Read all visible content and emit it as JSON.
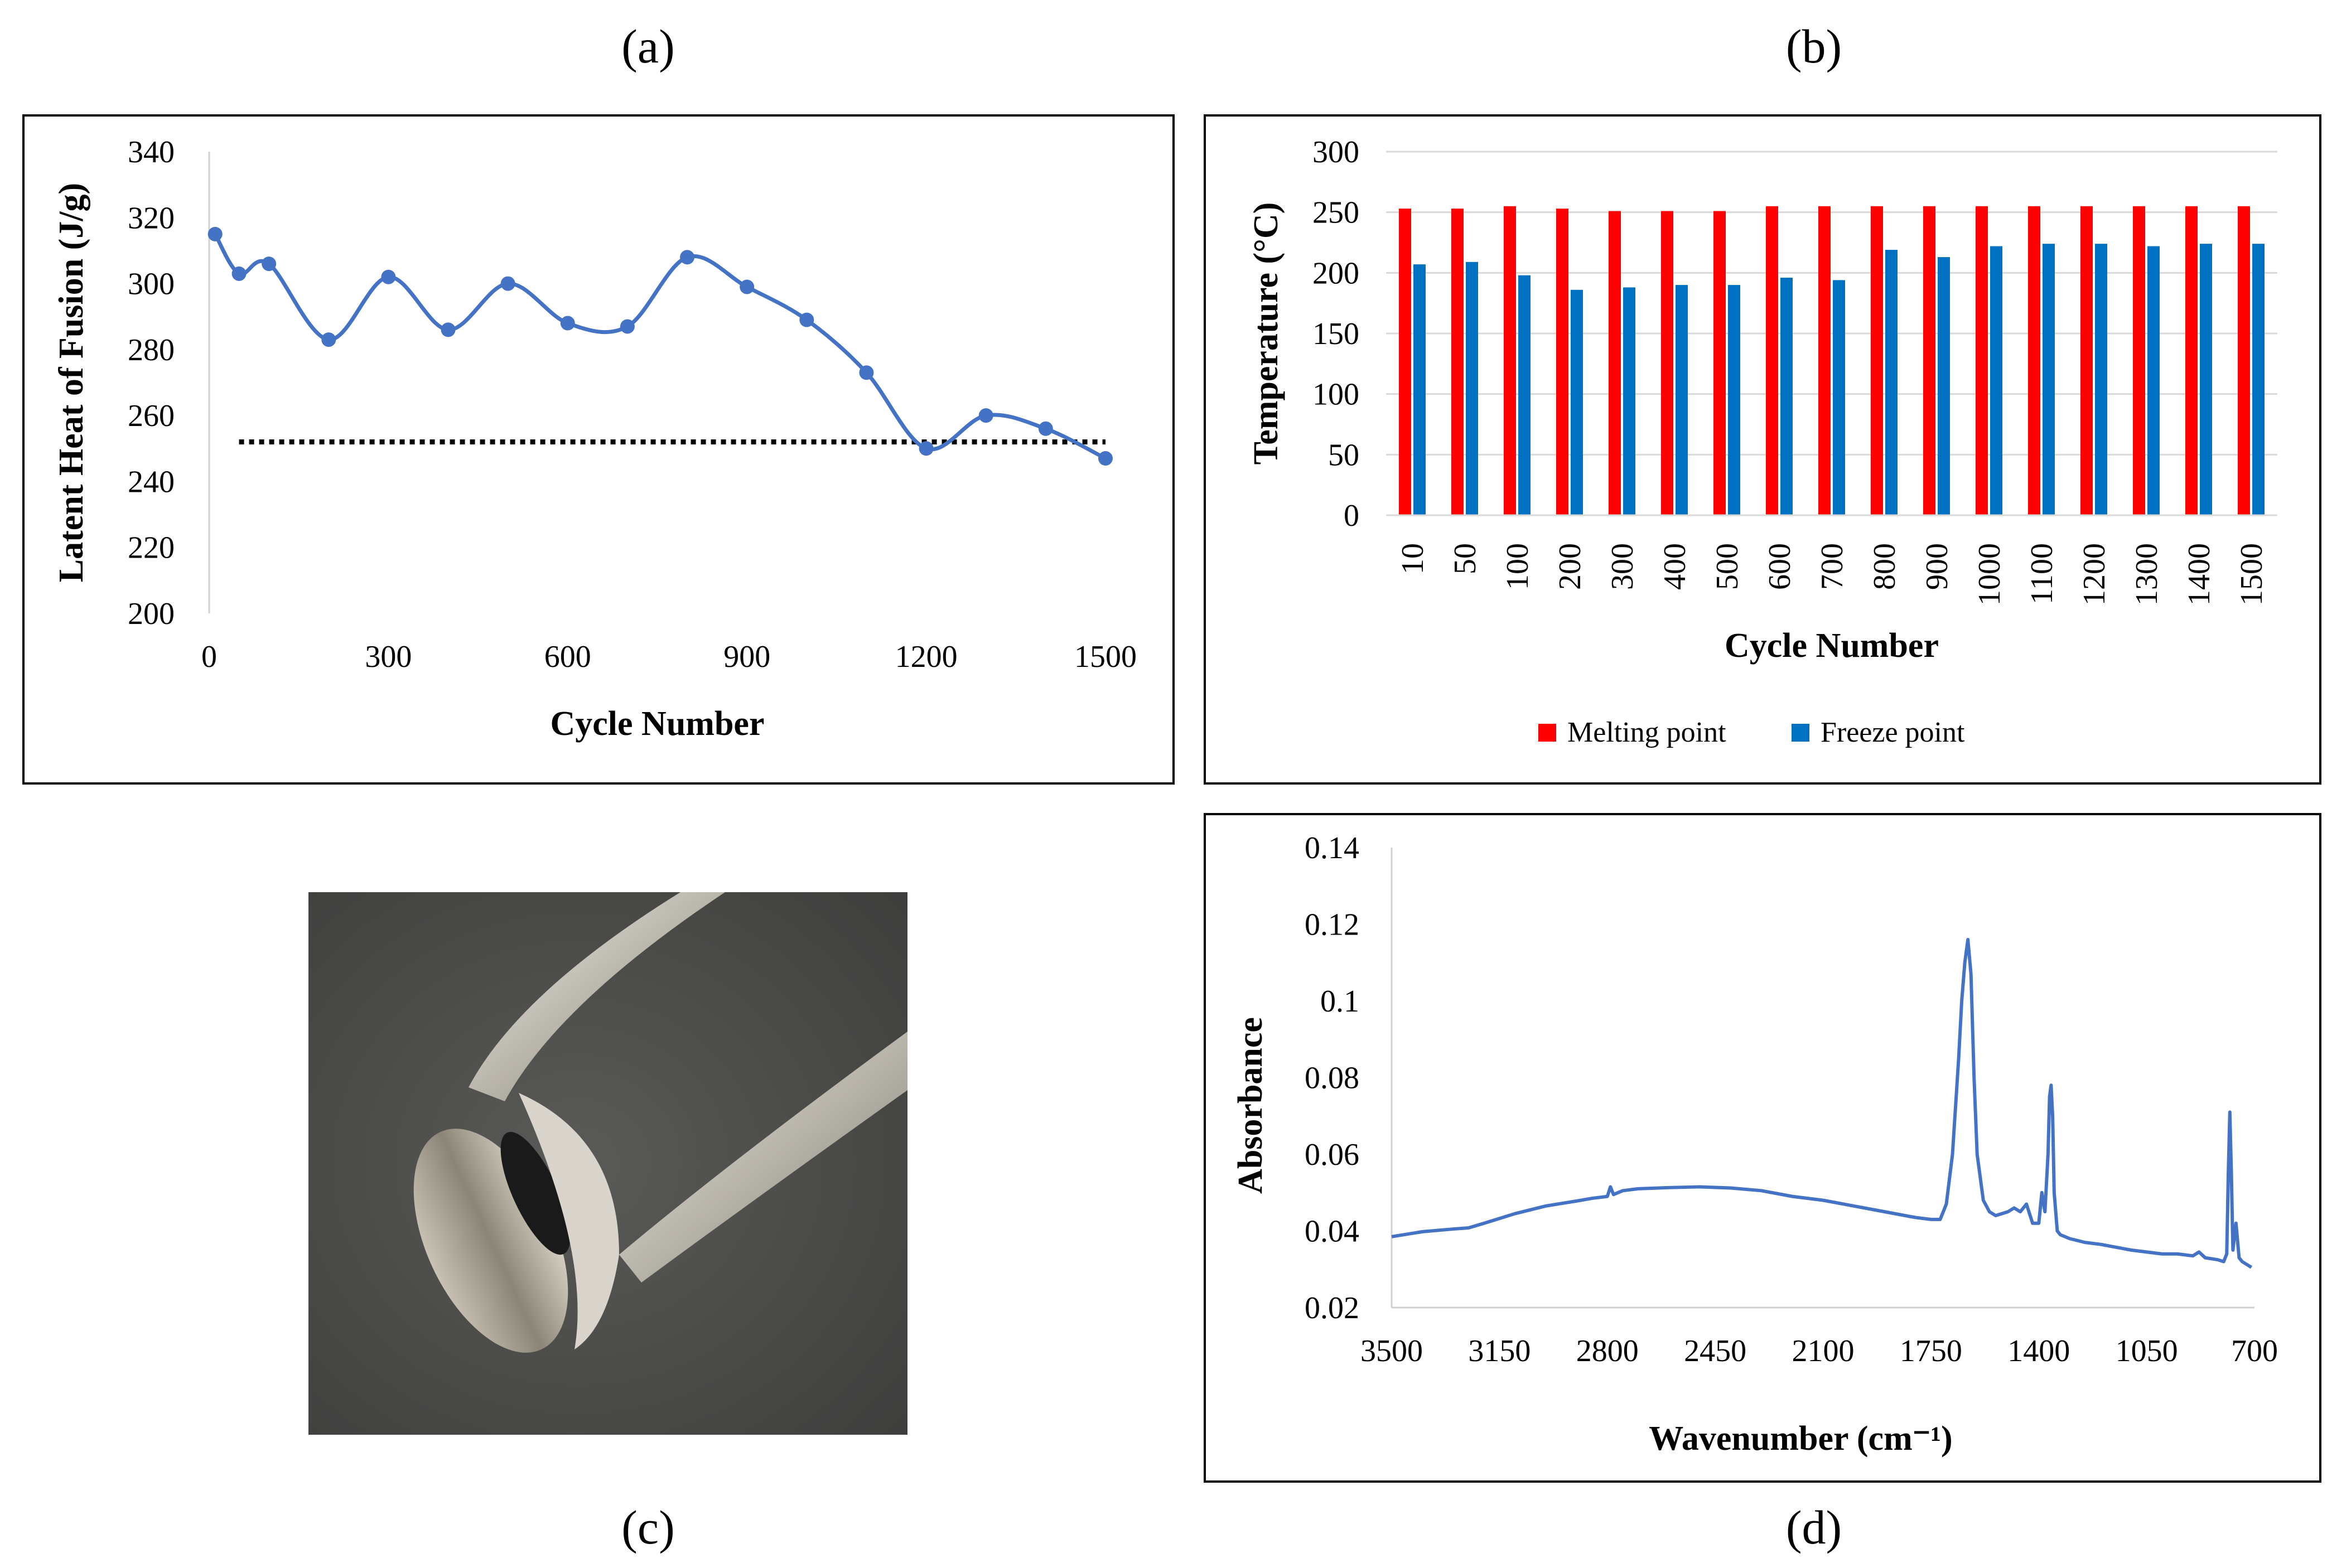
{
  "panels": {
    "a": {
      "label": "(a)"
    },
    "b": {
      "label": "(b)"
    },
    "c": {
      "label": "(c)"
    },
    "d": {
      "label": "(d)"
    }
  },
  "chart_data": [
    {
      "panel": "a",
      "type": "line",
      "title": "",
      "xlabel": "Cycle Number",
      "ylabel": "Latent Heat of Fusion (J/g)",
      "xlim": [
        0,
        1500
      ],
      "ylim": [
        200,
        340
      ],
      "xticks": [
        0,
        300,
        600,
        900,
        1200,
        1500
      ],
      "yticks": [
        200,
        220,
        240,
        260,
        280,
        300,
        320,
        340
      ],
      "grid": false,
      "series": [
        {
          "color": "#4472C4",
          "smooth": true,
          "markers": true,
          "x": [
            10,
            50,
            100,
            200,
            300,
            400,
            500,
            600,
            700,
            800,
            900,
            1000,
            1100,
            1200,
            1300,
            1400,
            1500
          ],
          "y": [
            315,
            303,
            306,
            283,
            302,
            286,
            300,
            288,
            287,
            308,
            299,
            289,
            273,
            250,
            260,
            256,
            247
          ]
        },
        {
          "color": "#000000",
          "style": "dotted",
          "x": [
            50,
            1500
          ],
          "y": [
            252,
            252
          ]
        }
      ]
    },
    {
      "panel": "b",
      "type": "bar",
      "title": "",
      "xlabel": "Cycle Number",
      "ylabel": "Temperature (°C)",
      "ylim": [
        0,
        300
      ],
      "yticks": [
        0,
        50,
        100,
        150,
        200,
        250,
        300
      ],
      "grid": true,
      "legend": "bottom",
      "categories": [
        "10",
        "50",
        "100",
        "200",
        "300",
        "400",
        "500",
        "600",
        "700",
        "800",
        "900",
        "1000",
        "1100",
        "1200",
        "1300",
        "1400",
        "1500"
      ],
      "series": [
        {
          "name": "Melting point",
          "color": "#FF0000",
          "values": [
            253,
            253,
            255,
            253,
            251,
            251,
            251,
            255,
            255,
            255,
            255,
            255,
            255,
            255,
            255,
            255,
            255
          ]
        },
        {
          "name": "Freeze point",
          "color": "#0070C0",
          "values": [
            207,
            209,
            198,
            186,
            188,
            190,
            190,
            196,
            194,
            219,
            213,
            222,
            224,
            224,
            222,
            224,
            224
          ]
        }
      ]
    },
    {
      "panel": "d",
      "type": "line",
      "title": "",
      "xlabel": "Wavenumber (cm⁻¹)",
      "ylabel": "Absorbance",
      "xlim": [
        3500,
        700
      ],
      "xreversed": true,
      "ylim": [
        0.02,
        0.14
      ],
      "xticks": [
        "3500",
        "3150",
        "2800",
        "2450",
        "2100",
        "1750",
        "1400",
        "1050",
        "700"
      ],
      "yticks": [
        "0.02",
        "0.04",
        "0.06",
        "0.08",
        "0.1",
        "0.12",
        "0.14"
      ],
      "grid": false,
      "series": [
        {
          "color": "#4472C4",
          "x": [
            3500,
            3400,
            3300,
            3250,
            3200,
            3100,
            3000,
            2900,
            2850,
            2800,
            2790,
            2780,
            2750,
            2700,
            2600,
            2500,
            2400,
            2300,
            2200,
            2100,
            2000,
            1900,
            1800,
            1750,
            1720,
            1700,
            1680,
            1660,
            1650,
            1640,
            1630,
            1620,
            1610,
            1600,
            1580,
            1560,
            1540,
            1500,
            1480,
            1460,
            1440,
            1420,
            1400,
            1390,
            1380,
            1370,
            1365,
            1360,
            1355,
            1350,
            1340,
            1330,
            1300,
            1250,
            1200,
            1100,
            1000,
            950,
            900,
            880,
            860,
            820,
            800,
            790,
            785,
            780,
            775,
            770,
            760,
            750,
            740,
            720,
            710
          ],
          "y": [
            0.0385,
            0.0398,
            0.0405,
            0.0408,
            0.042,
            0.0445,
            0.0465,
            0.0478,
            0.0485,
            0.049,
            0.0515,
            0.0495,
            0.0505,
            0.051,
            0.0513,
            0.0515,
            0.0512,
            0.0505,
            0.049,
            0.048,
            0.0465,
            0.045,
            0.0435,
            0.043,
            0.043,
            0.047,
            0.06,
            0.085,
            0.1,
            0.11,
            0.116,
            0.107,
            0.08,
            0.06,
            0.048,
            0.045,
            0.044,
            0.045,
            0.046,
            0.045,
            0.047,
            0.042,
            0.042,
            0.05,
            0.045,
            0.06,
            0.075,
            0.078,
            0.07,
            0.05,
            0.04,
            0.039,
            0.038,
            0.037,
            0.0365,
            0.035,
            0.034,
            0.034,
            0.0335,
            0.0345,
            0.033,
            0.0325,
            0.032,
            0.034,
            0.055,
            0.071,
            0.055,
            0.035,
            0.042,
            0.033,
            0.032,
            0.031,
            0.0305
          ]
        }
      ]
    }
  ],
  "photo": {
    "caption": "tweezers holding a pellet"
  }
}
